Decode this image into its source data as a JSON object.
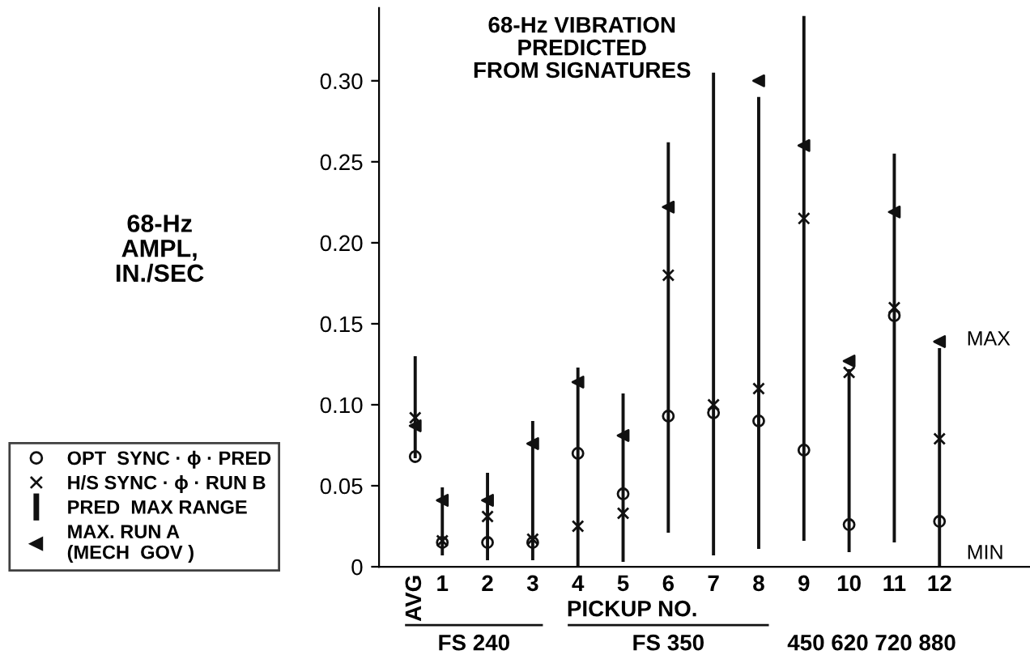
{
  "chart_data": {
    "type": "bar",
    "title": "68-Hz VIBRATION\nPREDICTED\nFROM SIGNATURES",
    "ylabel": "68-Hz\nAMPL,\nIN./SEC",
    "xlabel": "PICKUP NO.",
    "categories": [
      "AVG",
      "1",
      "2",
      "3",
      "4",
      "5",
      "6",
      "7",
      "8",
      "9",
      "10",
      "11",
      "12"
    ],
    "ylim": [
      0,
      0.345
    ],
    "yticks": [
      0,
      0.05,
      {
        "value": 0.1,
        "label": "0.10"
      },
      0.15,
      {
        "value": 0.2,
        "label": "0.20"
      },
      0.25,
      {
        "value": 0.3,
        "label": "0.30"
      }
    ],
    "grid": false,
    "legend": "left",
    "series": [
      {
        "name": "OPT  SYNC · ϕ · PRED",
        "type": "scatter",
        "marker": "circle",
        "color": "#111111",
        "values": [
          0.068,
          0.015,
          0.015,
          0.015,
          0.07,
          0.045,
          0.093,
          0.095,
          0.09,
          0.072,
          0.026,
          0.155,
          0.028
        ]
      },
      {
        "name": "H/S SYNC · ϕ · RUN B",
        "type": "scatter",
        "marker": "cross",
        "color": "#111111",
        "values": [
          0.092,
          0.016,
          0.031,
          0.017,
          0.025,
          0.033,
          0.18,
          0.1,
          0.11,
          0.215,
          0.12,
          0.16,
          0.079
        ]
      },
      {
        "name": "PRED  MAX RANGE",
        "color": "#111111",
        "base": [
          0.067,
          0.007,
          0.004,
          0.004,
          0.0,
          0.003,
          0.021,
          0.007,
          0.011,
          0.016,
          0.009,
          0.015,
          0.0
        ],
        "values": [
          0.063,
          0.042,
          0.054,
          0.086,
          0.123,
          0.104,
          0.241,
          0.298,
          0.279,
          0.324,
          0.113,
          0.24,
          0.135
        ]
      },
      {
        "name": "MAX. RUN A\n(MECH  GOV )",
        "type": "scatter",
        "marker": "triangle",
        "color": "#111111",
        "values": [
          0.087,
          0.041,
          0.041,
          0.076,
          0.114,
          0.081,
          0.222,
          null,
          0.3,
          0.26,
          0.127,
          0.219,
          0.139
        ]
      }
    ],
    "annotations": [
      "MAX",
      "MIN",
      "FS 240",
      "FS 350",
      "450 620 720 880"
    ]
  }
}
